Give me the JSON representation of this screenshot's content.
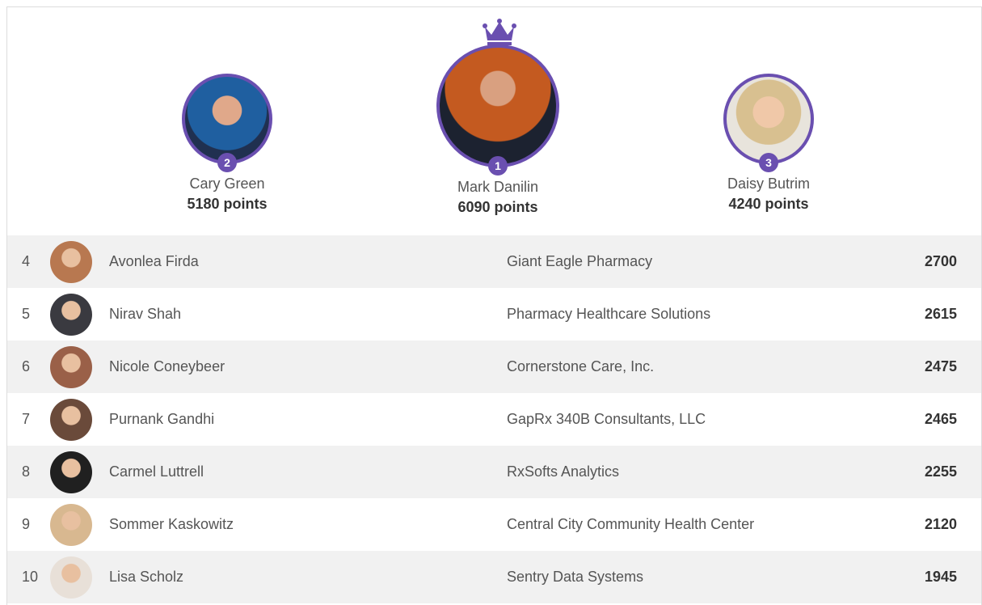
{
  "podium": [
    {
      "rank": 2,
      "name": "Cary Green",
      "points": "5180 points"
    },
    {
      "rank": 1,
      "name": "Mark Danilin",
      "points": "6090 points"
    },
    {
      "rank": 3,
      "name": "Daisy Butrim",
      "points": "4240 points"
    }
  ],
  "table": {
    "rows": [
      [
        4,
        "Avonlea Firda",
        "Giant Eagle Pharmacy",
        2700
      ],
      [
        5,
        "Nirav Shah",
        "Pharmacy Healthcare Solutions",
        2615
      ],
      [
        6,
        "Nicole Coneybeer",
        "Cornerstone Care, Inc.",
        2475
      ],
      [
        7,
        "Purnank Gandhi",
        "GapRx 340B Consultants, LLC",
        2465
      ],
      [
        8,
        "Carmel Luttrell",
        "RxSofts Analytics",
        2255
      ],
      [
        9,
        "Sommer Kaskowitz",
        "Central City Community Health Center",
        2120
      ],
      [
        10,
        "Lisa Scholz",
        "Sentry Data Systems",
        1945
      ]
    ]
  }
}
